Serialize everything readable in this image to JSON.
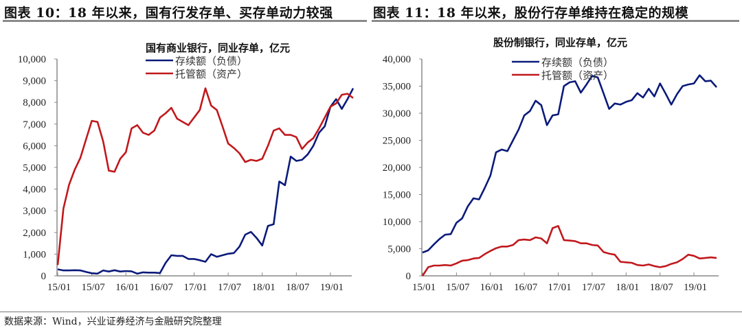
{
  "headers": {
    "left": "图表 10：18 年以来，国有行发存单、买存单动力较强",
    "right": "图表 11：18 年以来，股份行存单维持在稳定的规模"
  },
  "source": "数据来源：Wind，兴业证券经济与金融研究院整理",
  "colors": {
    "liability": "#0a1a7a",
    "asset": "#c0181c"
  },
  "chart_data": [
    {
      "type": "line",
      "title": "国有商业银行，同业存单，亿元",
      "xlabel": "",
      "ylabel": "",
      "x_start": "15/01",
      "x_end": "19/05",
      "x_frequency": "monthly",
      "x_ticks": [
        "15/01",
        "15/07",
        "16/01",
        "16/07",
        "17/01",
        "17/07",
        "18/01",
        "18/07",
        "19/01"
      ],
      "y_ticks": [
        "0",
        "1,000",
        "2,000",
        "3,000",
        "4,000",
        "5,000",
        "6,000",
        "7,000",
        "8,000",
        "9,000",
        "10,000"
      ],
      "ylim": [
        0,
        10000
      ],
      "legend_position": "top-center",
      "series": [
        {
          "name": "存续额（负债）",
          "color": "#0a1a7a",
          "values": [
            300,
            250,
            250,
            260,
            250,
            180,
            120,
            100,
            250,
            200,
            260,
            200,
            220,
            210,
            100,
            160,
            150,
            150,
            130,
            600,
            950,
            920,
            920,
            780,
            780,
            720,
            650,
            1000,
            880,
            950,
            1020,
            1050,
            1350,
            1900,
            2030,
            1750,
            1400,
            2300,
            2380,
            4350,
            4180,
            5500,
            5300,
            5350,
            5600,
            6000,
            6600,
            6900,
            7800,
            8150,
            7700,
            8150,
            8650
          ]
        },
        {
          "name": "托管额（资产）",
          "color": "#c0181c",
          "values": [
            500,
            3100,
            4200,
            4900,
            5450,
            6300,
            7150,
            7100,
            6200,
            4850,
            4800,
            5400,
            5700,
            6800,
            6950,
            6600,
            6500,
            6700,
            7300,
            7500,
            7750,
            7250,
            7100,
            6950,
            7300,
            7650,
            8650,
            7850,
            7650,
            6900,
            6100,
            5900,
            5650,
            5250,
            5350,
            5300,
            5400,
            6000,
            6700,
            6800,
            6500,
            6500,
            6400,
            5850,
            6150,
            6350,
            6800,
            7300,
            7800,
            7950,
            8350,
            8400,
            8200
          ]
        }
      ]
    },
    {
      "type": "line",
      "title": "股份制银行，同业存单，亿元",
      "xlabel": "",
      "ylabel": "",
      "x_start": "15/01",
      "x_end": "19/05",
      "x_frequency": "monthly",
      "x_ticks": [
        "15/01",
        "15/07",
        "16/01",
        "16/07",
        "17/01",
        "17/07",
        "18/01",
        "18/07",
        "19/01"
      ],
      "y_ticks": [
        "0",
        "5,000",
        "10,000",
        "15,000",
        "20,000",
        "25,000",
        "30,000",
        "35,000",
        "40,000"
      ],
      "ylim": [
        0,
        40000
      ],
      "legend_position": "top-center",
      "series": [
        {
          "name": "存续额（负债）",
          "color": "#0a1a7a",
          "values": [
            4300,
            4700,
            5800,
            6800,
            7600,
            7700,
            9800,
            10600,
            12800,
            14300,
            14100,
            16200,
            18500,
            22800,
            23300,
            23000,
            25000,
            27000,
            29600,
            30400,
            32300,
            31500,
            27800,
            29600,
            29800,
            35000,
            35700,
            35900,
            33800,
            35300,
            36900,
            36600,
            33700,
            30800,
            31800,
            31600,
            32100,
            32400,
            33700,
            32900,
            34500,
            33100,
            35500,
            33600,
            31600,
            33500,
            35000,
            35300,
            35500,
            37000,
            35900,
            36000,
            34800
          ]
        },
        {
          "name": "托管额（资产）",
          "color": "#c0181c",
          "values": [
            0,
            1600,
            1900,
            1900,
            2000,
            1900,
            2300,
            2800,
            2900,
            3200,
            3300,
            4000,
            4600,
            5100,
            5400,
            5400,
            5700,
            6600,
            6700,
            6600,
            7100,
            6900,
            6000,
            8800,
            9200,
            6600,
            6500,
            6400,
            6000,
            6000,
            5700,
            5600,
            4400,
            4100,
            3900,
            2600,
            2500,
            2400,
            2000,
            1900,
            2100,
            1800,
            1600,
            1800,
            2200,
            2500,
            3100,
            3900,
            3700,
            3200,
            3300,
            3400,
            3300
          ]
        }
      ]
    }
  ]
}
